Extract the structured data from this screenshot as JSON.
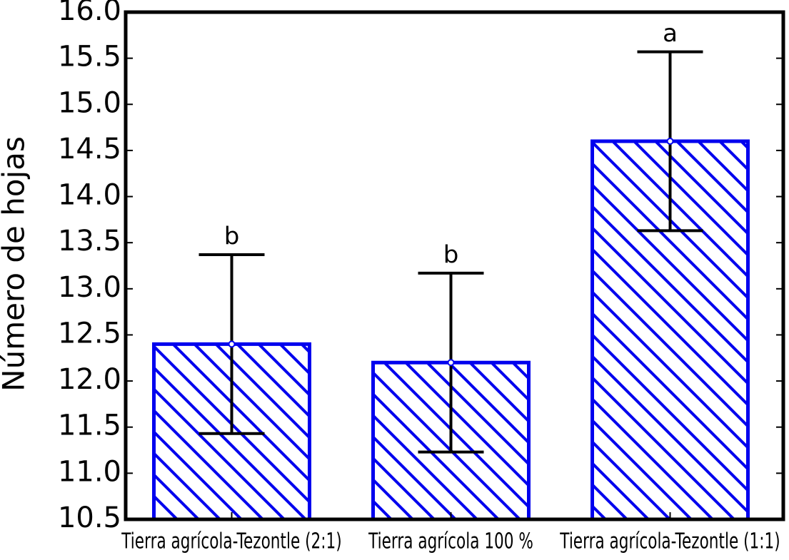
{
  "chart_data": {
    "type": "bar",
    "ylabel": "Número de hojas",
    "categories": [
      "Tierra agrícola-Tezontle (2:1)",
      "Tierra agrícola 100 %",
      "Tierra agrícola-Tezontle (1:1)"
    ],
    "values": [
      12.4,
      12.2,
      14.6
    ],
    "errors": [
      0.97,
      0.97,
      0.97
    ],
    "annotations": [
      "b",
      "b",
      "a"
    ],
    "color": "#0000ee",
    "ylim": [
      10.5,
      16.0
    ],
    "yticks": [
      10.5,
      {
        "value": 11.0,
        "label": "11.0"
      },
      11.5,
      {
        "value": 12.0,
        "label": "12.0"
      },
      12.5,
      {
        "value": 13.0,
        "label": "13.0"
      },
      13.5,
      {
        "value": 14.0,
        "label": "14.0"
      },
      14.5,
      {
        "value": 15.0,
        "label": "15.0"
      },
      15.5,
      {
        "value": 16.0,
        "label": "16.0"
      }
    ]
  }
}
